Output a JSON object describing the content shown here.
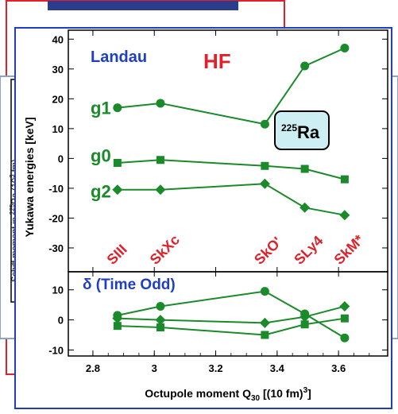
{
  "background": {
    "back_axis_label_prefix": "Schiff moment in",
    "back_axis_label_isotope_mass": "225",
    "back_axis_label_rest": "Ra (10",
    "back_axis_label_exponent": "3",
    "back_axis_label_suffix": " fm)",
    "back_tick_label": "0"
  },
  "colors": {
    "frame_blue": "#1f3fbf",
    "frame_red": "#e0202a",
    "series_green": "#1a8a2a",
    "label_blue": "#1f3fbf",
    "label_red": "#e0202a",
    "badge_fill": "#cdeef2"
  },
  "chart_data": [
    {
      "type": "line",
      "panel": "top",
      "title_left": "Landau",
      "title_right": "HF",
      "badge_mass": "225",
      "badge_element": "Ra",
      "ylabel": "Yukawa energies [keV]",
      "ylim": [
        -38,
        43
      ],
      "yticks": [
        -30,
        -20,
        -10,
        0,
        10,
        20,
        30,
        40
      ],
      "xlim": [
        2.72,
        3.76
      ],
      "x": [
        2.88,
        3.02,
        3.36,
        3.49,
        3.62
      ],
      "force_labels": [
        "SIII",
        "SkXc",
        "SkO'",
        "SLy4",
        "SkM*"
      ],
      "series": [
        {
          "name": "g1",
          "marker": "circle",
          "values": [
            17,
            18.5,
            11.5,
            31,
            37
          ]
        },
        {
          "name": "g0",
          "marker": "square",
          "values": [
            -1.5,
            -0.5,
            -2.5,
            -3.5,
            -7
          ]
        },
        {
          "name": "g2",
          "marker": "diamond",
          "values": [
            -10.5,
            -10.5,
            -8.5,
            -16.5,
            -19
          ]
        }
      ]
    },
    {
      "type": "line",
      "panel": "bottom",
      "title": "δ (Time Odd)",
      "ylim": [
        -12,
        16
      ],
      "yticks": [
        -10,
        0,
        10
      ],
      "xlim": [
        2.72,
        3.76
      ],
      "xticks": [
        2.8,
        3.0,
        3.2,
        3.4,
        3.6
      ],
      "xtick_labels": [
        "2.8",
        "3",
        "3.2",
        "3.4",
        "3.6"
      ],
      "xlabel_prefix": "Octupole moment Q",
      "xlabel_subscript": "30",
      "xlabel_middle": " [(10 fm)",
      "xlabel_superscript": "3",
      "xlabel_suffix": "]",
      "x": [
        2.88,
        3.02,
        3.36,
        3.49,
        3.62
      ],
      "series": [
        {
          "marker": "circle",
          "values": [
            1.5,
            4.5,
            9.5,
            2,
            -6
          ]
        },
        {
          "marker": "diamond",
          "values": [
            0.5,
            0,
            -1,
            1,
            4.5
          ]
        },
        {
          "marker": "square",
          "values": [
            -2,
            -2.5,
            -5,
            -1.5,
            0.5
          ]
        }
      ]
    }
  ]
}
